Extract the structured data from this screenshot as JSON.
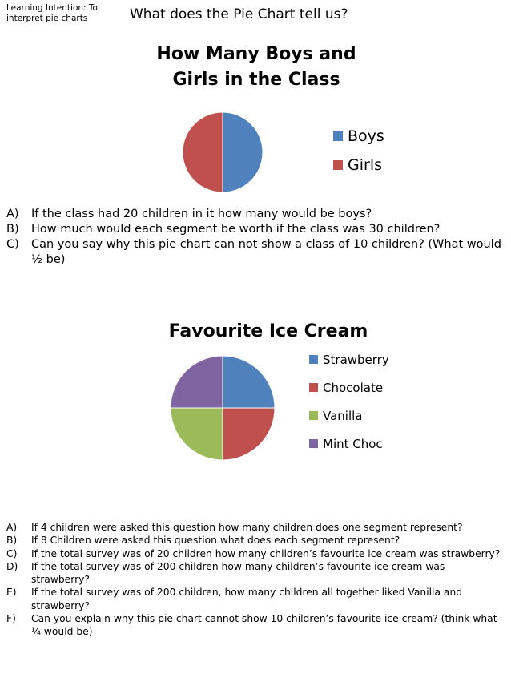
{
  "header": {
    "learning_intention": "Learning Intention: To interpret pie charts",
    "title": "What does the Pie Chart tell us?"
  },
  "chart_data": [
    {
      "type": "pie",
      "title": "How Many Boys and Girls in the Class",
      "categories": [
        "Boys",
        "Girls"
      ],
      "values": [
        1,
        1
      ],
      "colors": [
        "#4f81bd",
        "#c0504d"
      ],
      "legend": "right"
    },
    {
      "type": "pie",
      "title": "Favourite Ice Cream",
      "categories": [
        "Strawberry",
        "Chocolate",
        "Vanilla",
        "Mint Choc"
      ],
      "values": [
        1,
        1,
        1,
        1
      ],
      "colors": [
        "#4f81bd",
        "#c0504d",
        "#9bbb59",
        "#8064a2"
      ],
      "legend": "right"
    }
  ],
  "questions1": [
    {
      "letter": "A)",
      "text": "If the class had 20 children in it how many would be boys?"
    },
    {
      "letter": "B)",
      "text": "How much would each segment be worth if the class was 30 children?"
    },
    {
      "letter": "C)",
      "text": "Can you say why this pie chart can not show a class of 10 children?  (What would ½ be)"
    }
  ],
  "questions2": [
    {
      "letter": "A)",
      "text": "If 4 children were asked this question how many children does one segment represent?"
    },
    {
      "letter": "B)",
      "text": "If 8 Children were asked this question what does each segment represent?"
    },
    {
      "letter": "C)",
      "text": "If the total survey was of 20 children how many children’s favourite ice cream was strawberry?"
    },
    {
      "letter": "D)",
      "text": "If the total survey was of 200 children how many children’s favourite ice cream was strawberry?"
    },
    {
      "letter": "E)",
      "text": "If the total survey was of 200 children, how many children all together liked Vanilla and strawberry?"
    },
    {
      "letter": "F)",
      "text": "Can you explain why this pie chart cannot show 10 children’s favourite ice cream?  (think what ¼ would be)"
    }
  ]
}
